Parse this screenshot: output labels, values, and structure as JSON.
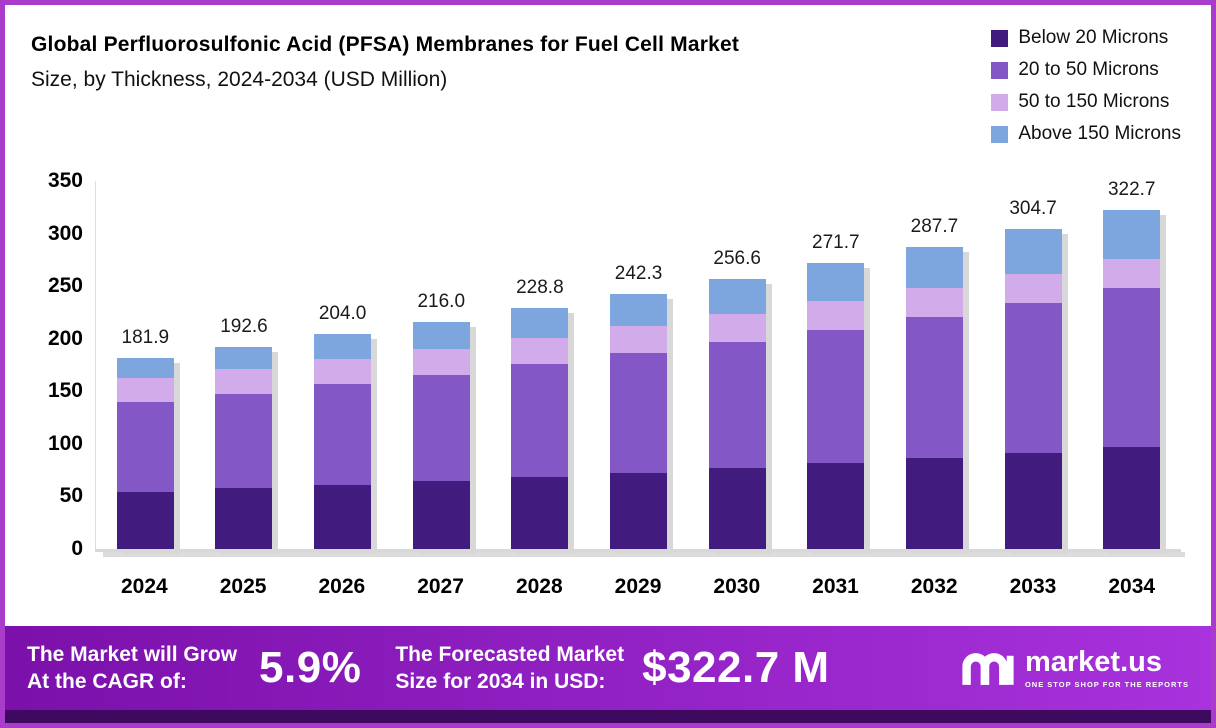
{
  "header": {
    "title_line1": "Global Perfluorosulfonic Acid (PFSA) Membranes for Fuel Cell Market",
    "title_line2": "Size, by Thickness, 2024-2034 (USD Million)"
  },
  "chart_data": {
    "type": "bar",
    "stacked": true,
    "title": "Global Perfluorosulfonic Acid (PFSA) Membranes for Fuel Cell Market Size, by Thickness, 2024-2034 (USD Million)",
    "categories": [
      "2024",
      "2025",
      "2026",
      "2027",
      "2028",
      "2029",
      "2030",
      "2031",
      "2032",
      "2033",
      "2034"
    ],
    "totals": [
      181.9,
      192.6,
      204.0,
      216.0,
      228.8,
      242.3,
      256.6,
      271.7,
      287.7,
      304.7,
      322.7
    ],
    "series": [
      {
        "name": "Below 20 Microns",
        "color": "#411b7d",
        "values": [
          54.6,
          57.8,
          61.2,
          64.8,
          68.6,
          72.7,
          77.0,
          81.5,
          86.3,
          91.4,
          96.8
        ]
      },
      {
        "name": "20 to 50 Microns",
        "color": "#8457c6",
        "values": [
          85.1,
          90.1,
          95.5,
          101.1,
          107.1,
          113.4,
          120.1,
          127.2,
          134.6,
          142.6,
          151.0
        ]
      },
      {
        "name": "50 to 150 Microns",
        "color": "#d2abeb",
        "values": [
          22.9,
          23.5,
          24.1,
          24.6,
          25.2,
          25.7,
          26.2,
          26.9,
          27.3,
          27.7,
          28.1
        ]
      },
      {
        "name": "Above 150 Microns",
        "color": "#7ca6dd",
        "values": [
          19.3,
          21.2,
          23.3,
          25.5,
          27.9,
          30.5,
          33.4,
          36.1,
          39.4,
          43.0,
          46.8
        ]
      }
    ],
    "xlabel": "",
    "ylabel": "",
    "ylim": [
      0,
      350
    ],
    "yticks": [
      0,
      50,
      100,
      150,
      200,
      250,
      300,
      350
    ],
    "grid": false,
    "legend_position": "top-right"
  },
  "footer": {
    "cagr_label_line1": "The Market will Grow",
    "cagr_label_line2": "At the CAGR of:",
    "cagr_value": "5.9%",
    "forecast_label_line1": "The Forecasted Market",
    "forecast_label_line2": "Size for 2034 in USD:",
    "forecast_value": "$322.7 M",
    "brand_name": "market.us",
    "brand_tagline": "ONE STOP SHOP FOR THE REPORTS"
  },
  "colors": {
    "frame_border": "#a93ccb",
    "banner_left": "#7b10aa",
    "banner_right": "#a832dd",
    "bottom_strip": "#3d0a5f"
  }
}
